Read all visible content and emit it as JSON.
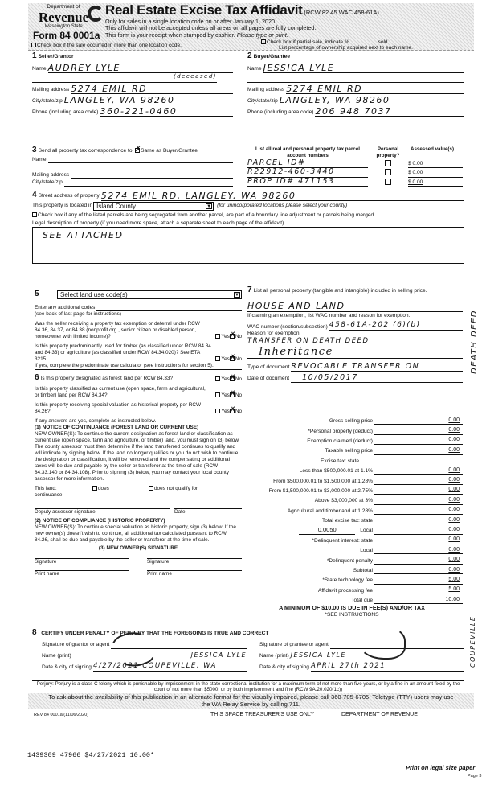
{
  "header": {
    "dept_of": "Department of",
    "revenue": "Revenue",
    "state": "Washington State",
    "form_no": "Form 84 0001a",
    "title": "Real Estate Excise Tax Affidavit",
    "citation": "(RCW 82.45 WAC 458-61A)",
    "line1": "Only for sales in a single location code on or after January 1, 2020.",
    "line2": "This affidavit will not be accepted unless all areas on all pages are fully completed.",
    "line3a": "This form is your receipt when stamped by cashier.",
    "line3b": "Please type or print.",
    "multi_loc": "Check box if the sale occurred in more than one location code.",
    "partial": "Check box if partial sale, indicate %",
    "sold": "sold.",
    "pct_note": "List percentage of ownership acquired next to each name."
  },
  "seller": {
    "num": "1",
    "heading": "Seller/Grantor",
    "name_label": "Name",
    "name": "AUDREY LYLE",
    "name_note": "(deceased)",
    "mail_label": "Mailing address",
    "mail": "5274 EMIL RD",
    "city_label": "City/state/zip",
    "city": "LANGLEY, WA 98260",
    "phone_label": "Phone (including area code)",
    "phone": "360-221-0460"
  },
  "buyer": {
    "num": "2",
    "heading": "Buyer/Grantee",
    "name_label": "Name",
    "name": "JESSICA LYLE",
    "mail_label": "Mailing address",
    "mail": "5274 EMIL RD",
    "city_label": "City/state/zip",
    "city": "LANGLEY, WA 98260",
    "phone_label": "Phone (including area code)",
    "phone": "206 948 7037"
  },
  "sec3": {
    "num": "3",
    "text": "Send all property tax correspondence to:",
    "same": "Same as Buyer/Grantee",
    "name_label": "Name",
    "mail_label": "Mailing address",
    "city_label": "City/state/zip"
  },
  "parcels": {
    "col1": "List all real and personal property tax parcel account numbers",
    "col2": "Personal property?",
    "col3": "Assessed value(s)",
    "rows": [
      {
        "num": "PARCEL ID#",
        "value": "$ 0.00"
      },
      {
        "num": "R22912-460-3440",
        "value": "$ 0.00"
      },
      {
        "num": "PROP ID# 471153",
        "value": "$ 0.00"
      }
    ]
  },
  "sec4": {
    "num": "4",
    "street_label": "Street address of property",
    "street": "5274 EMIL RD, LANGLEY, WA 98260",
    "located_label": "This property is located in",
    "county": "Island County",
    "county_note": "(for unincorporated locations please select your county)",
    "segregated": "Check box if any of the listed parcels are being segregated from another parcel, are part of a boundary line adjustment or parcels being merged.",
    "legal_label": "Legal description of property (if you need more space, attach a separate sheet to each page of the affidavit).",
    "legal": "SEE ATTACHED"
  },
  "sec5": {
    "num": "5",
    "select": "Select land use code(s)",
    "additional": "Enter any additional codes",
    "see_back": "(see back of last page for instructions)",
    "q1": "Was the seller receiving a property tax exemption or deferral under RCW 84.36, 84.37, or 84.38 (nonprofit org., senior citizen or disabled person, homeowner with limited income)?",
    "q2": "Is this property predominantly used for timber (as classified under RCW 84.84 and 84.33) or agriculture (as classified under RCW 84.34.020)? See ETA 3215.",
    "q2b": "If yes, complete the predominate use calculator (see instructions for section 5).",
    "yes": "Yes",
    "no": "No"
  },
  "sec6": {
    "num": "6",
    "q1": "Is this property designated as forest land per RCW 84.33?",
    "q2": "Is this property classified as current use (open space, farm and agricultural, or timber) land per RCW 84.34?",
    "q3": "Is this property receiving special valuation as historical property per RCW 84.26?",
    "if_yes": "If any answers are yes, complete as instructed below.",
    "n1_title": "(1) NOTICE OF CONTINUANCE (FOREST LAND OR CURRENT USE)",
    "n1_text": "NEW OWNER(S): To continue the current designation as forest land or classification as current use (open space, farm and agriculture, or timber) land, you must sign on (3) below. The county assessor must then determine if the land transferred continues to qualify and will indicate by signing below. If the land no longer qualifies or you do not wish to continue the designation or classification, it will be removed and the compensating or additional taxes will be due and payable by the seller or transferor at the time of sale (RCW 84.33.140 or 84.34.108). Prior to signing (3) below, you may contact your local county assessor for more information.",
    "this_land": "This land:",
    "does": "does",
    "does_not": "does not qualify for",
    "continuance": "continuance.",
    "deputy": "Deputy assessor signature",
    "date": "Date",
    "n2_title": "(2) NOTICE OF COMPLIANCE (HISTORIC PROPERTY)",
    "n2_text": "NEW OWNER(S): To continue special valuation as historic property, sign (3) below. If the new owner(s) doesn't wish to continue, all additional tax calculated pursuant to RCW 84.26, shall be due and payable by the seller or transferor at the time of sale.",
    "n3_title": "(3) NEW OWNER(S) SIGNATURE",
    "signature": "Signature",
    "print_name": "Print name"
  },
  "sec7": {
    "num": "7",
    "text": "List all personal property (tangible and intangible) included in selling price.",
    "personal": "HOUSE AND LAND",
    "claim": "If claiming an exemption, list WAC number and reason for exemption.",
    "wac_label": "WAC number (section/subsection)",
    "wac": "458-61A-202 (6)(b)",
    "reason_label": "Reason for exemption",
    "reason1": "TRANSFER ON DEATH DEED",
    "reason2": "Inheritance",
    "margin_note": "DEATH DEED",
    "doctype_label": "Type of document",
    "doctype": "REVOCABLE TRANSFER ON",
    "docdate_label": "Date of document",
    "docdate": "10/05/2017"
  },
  "tax": {
    "rows": [
      {
        "label": "Gross selling price",
        "value": "0.00"
      },
      {
        "label": "*Personal property (deduct)",
        "value": "0.00"
      },
      {
        "label": "Exemption claimed (deduct)",
        "value": "0.00"
      },
      {
        "label": "Taxable selling price",
        "value": "0.00"
      },
      {
        "label": "Excise tax: state",
        "value": ""
      },
      {
        "label": "Less than $500,000.01 at 1.1%",
        "value": "0.00"
      },
      {
        "label": "From $500,000.01 to $1,500,000 at 1.28%",
        "value": "0.00"
      },
      {
        "label": "From $1,500,000.01 to $3,000,000 at 2.75%",
        "value": "0.00"
      },
      {
        "label": "Above $3,000,000 at 3%",
        "value": "0.00"
      },
      {
        "label": "Agricultural and timberland at 1.28%",
        "value": "0.00"
      },
      {
        "label": "Total excise tax: state",
        "value": "0.00"
      },
      {
        "label": "Local",
        "value": "0.00",
        "rate": "0.0050"
      },
      {
        "label": "*Delinquent interest: state",
        "value": "0.00"
      },
      {
        "label": "Local",
        "value": "0.00"
      },
      {
        "label": "*Delinquent penalty",
        "value": "0.00"
      },
      {
        "label": "Subtotal",
        "value": "0.00"
      },
      {
        "label": "*State technology fee",
        "value": "5.00"
      },
      {
        "label": "Affidavit processing fee",
        "value": "5.00"
      },
      {
        "label": "Total due",
        "value": "10.00"
      }
    ],
    "minimum": "A MINIMUM OF $10.00 IS DUE IN FEE(S) AND/OR TAX",
    "see": "*SEE INSTRUCTIONS",
    "margin_note": "COUPEVILLE"
  },
  "sec8": {
    "num": "8",
    "certify": "I CERTIFY UNDER PENALTY OF PERJURY THAT THE FOREGOING IS TRUE AND CORRECT",
    "sig_grantor": "Signature of grantor or agent",
    "sig_grantee": "Signature of grantee or agent",
    "name_label": "Name (print)",
    "grantor_name": "JESSICA LYLE",
    "grantee_name": "JESSICA LYLE",
    "date_label": "Date & city of signing",
    "grantor_date": "4/27/2021 COUPEVILLE, WA",
    "grantee_date": "APRIL 27th 2021"
  },
  "footer": {
    "perjury": "Perjury: Perjury is a class C felony which is punishable by imprisonment in the state correctional institution for a maximum term of not more than five years, or by a fine in an amount fixed by the court of not more than $5000, or by both imprisonment and fine (RCW 9A.20.020(1c))",
    "access": "To ask about the availability of this publication in an alternate format for the visually impaired, please call 360-705-6705. Teletype (TTY) users may use the WA Relay Service by calling 711.",
    "rev": "REV 84 0001a (11/06/2020)",
    "treasurer": "THIS SPACE TREASURER'S USE ONLY",
    "dor": "DEPARTMENT OF REVENUE",
    "stamp": "1439309 47966 $4/27/2021 10.00*",
    "print_legal": "Print on legal size paper",
    "page": "Page 3"
  }
}
